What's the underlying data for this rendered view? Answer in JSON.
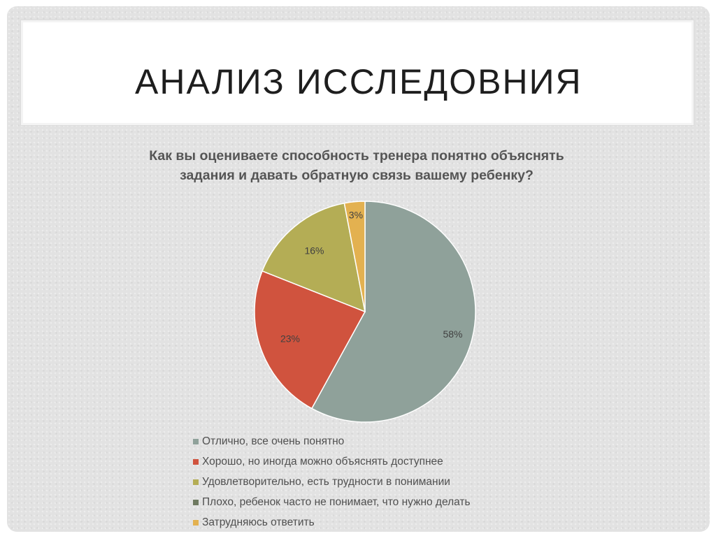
{
  "slide": {
    "title": "АНАЛИЗ ИССЛЕДОВНИЯ"
  },
  "chart_data": {
    "type": "pie",
    "title_lines": [
      "Как вы оцениваете способность тренера понятно объяснять",
      "задания и давать обратную связь вашему ребенку?"
    ],
    "categories": [
      "Отлично, все очень понятно",
      "Хорошо, но иногда можно объяснять доступнее",
      "Удовлетворительно, есть трудности в понимании",
      "Плохо, ребенок часто не понимает, что нужно делать",
      "Затрудняюсь ответить"
    ],
    "values": [
      58,
      23,
      16,
      0,
      3
    ],
    "data_labels": [
      "58%",
      "23%",
      "16%",
      "",
      "3%"
    ],
    "colors": [
      "#8fa19a",
      "#d0533e",
      "#b4ad55",
      "#6f7a61",
      "#e3b150"
    ],
    "legend_position": "bottom"
  }
}
